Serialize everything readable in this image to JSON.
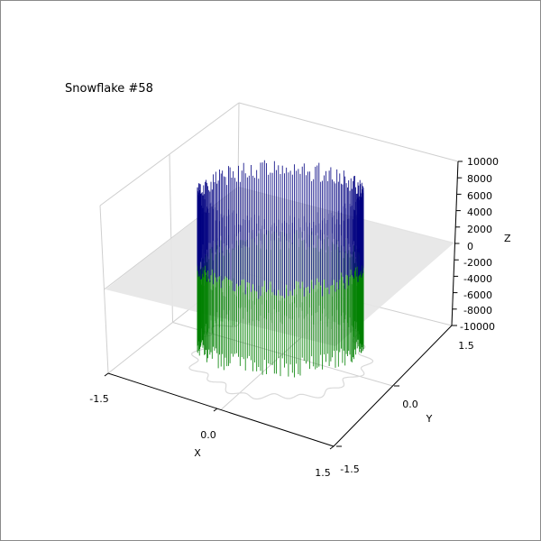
{
  "chart_data": {
    "type": "3d-line",
    "title": "Snowflake #58",
    "xlabel": "X",
    "ylabel": "Y",
    "zlabel": "Z",
    "xlim": [
      -1.5,
      1.5
    ],
    "ylim": [
      -1.5,
      1.5
    ],
    "zlim": [
      -10000,
      10000
    ],
    "x_ticks": [
      "-1.5",
      "0.0",
      "1.5"
    ],
    "y_ticks": [
      "-1.5",
      "0.0",
      "1.5"
    ],
    "z_ticks": [
      "10000",
      "8000",
      "6000",
      "4000",
      "2000",
      "0",
      "-2000",
      "-4000",
      "-6000",
      "-8000",
      "-10000"
    ],
    "grid": true,
    "plane_z": 0,
    "series": [
      {
        "color": "#000080",
        "z_range": [
          -3000,
          6500
        ]
      },
      {
        "color": "#008000",
        "z_range": [
          -8000,
          2500
        ]
      }
    ],
    "outline_color": "#d9d9d9",
    "plane_color": "#e6e6e6"
  }
}
